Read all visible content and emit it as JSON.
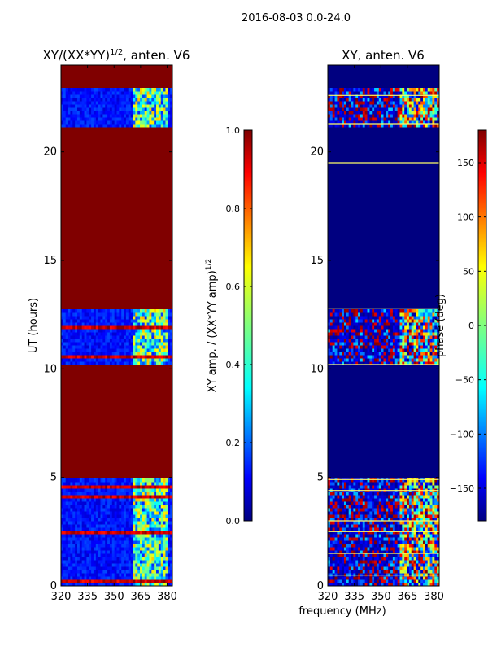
{
  "figure": {
    "suptitle": "2016-08-03 0.0-24.0",
    "xlabel_shared": "frequency (MHz)"
  },
  "colors": {
    "background": "#ffffff",
    "axis_edge": "#000000",
    "colormap": [
      "#00007f",
      "#0000ff",
      "#007fff",
      "#00ffff",
      "#7fff7f",
      "#ffff00",
      "#ff7f00",
      "#ff0000",
      "#7f0000"
    ]
  },
  "chart_data": [
    {
      "type": "heatmap",
      "title": "XY/(XX*YY)",
      "title_exp": "1/2",
      "title_suffix": ", anten. V6",
      "xlabel": "",
      "ylabel": "UT (hours)",
      "xlim": [
        320,
        383
      ],
      "ylim": [
        0,
        24
      ],
      "xticks": [
        320,
        335,
        350,
        365,
        380
      ],
      "yticks": [
        0,
        5,
        10,
        15,
        20
      ],
      "background_value": 1.0,
      "block_ranges_hours": [
        [
          0,
          4.9
        ],
        [
          10.2,
          12.8
        ],
        [
          21.2,
          22.9
        ]
      ],
      "strong_variation_freq_range": [
        360,
        380
      ],
      "colorbar": {
        "label": "XY amp. / (XX*YY amp)",
        "label_exp": "1/2",
        "min": 0.0,
        "max": 1.0,
        "ticks": [
          0.0,
          0.2,
          0.4,
          0.6,
          0.8,
          1.0
        ],
        "tick_labels": [
          "0.0",
          "0.2",
          "0.4",
          "0.6",
          "0.8",
          "1.0"
        ]
      }
    },
    {
      "type": "heatmap",
      "title": "XY, anten. V6",
      "xlabel": "frequency (MHz)",
      "ylabel": "",
      "xlim": [
        320,
        383
      ],
      "ylim": [
        0,
        24
      ],
      "xticks": [
        320,
        335,
        350,
        365,
        380
      ],
      "yticks": [
        0,
        5,
        10,
        15,
        20
      ],
      "background_value": -180,
      "block_ranges_hours": [
        [
          0,
          4.9
        ],
        [
          10.2,
          12.8
        ],
        [
          21.2,
          22.9
        ]
      ],
      "horizontal_lines_hours": [
        0.5,
        1.5,
        2.5,
        3.0,
        4.4,
        4.9,
        10.2,
        12.8,
        19.5,
        21.3,
        22.6
      ],
      "colorbar": {
        "label": "phase (deg)",
        "min": -180,
        "max": 180,
        "ticks": [
          -150,
          -100,
          -50,
          0,
          50,
          100,
          150
        ],
        "tick_labels": [
          "−150",
          "−100",
          "−50",
          "0",
          "50",
          "100",
          "150"
        ]
      }
    }
  ]
}
